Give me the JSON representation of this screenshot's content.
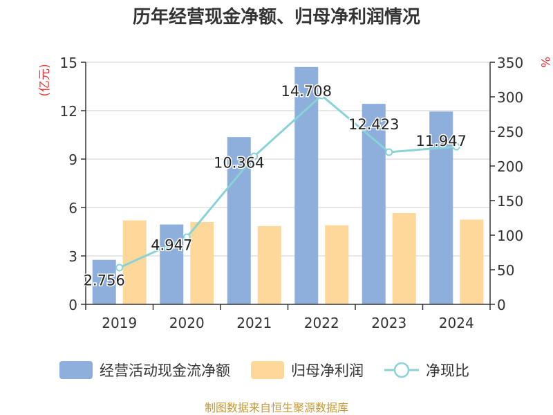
{
  "chart_data": {
    "type": "bar",
    "title": "历年经营现金净额、归母净利润情况",
    "categories": [
      "2019",
      "2020",
      "2021",
      "2022",
      "2023",
      "2024"
    ],
    "series": [
      {
        "name": "经营活动现金流净额",
        "kind": "bar",
        "axis": "left",
        "color": "#8eaedc",
        "values": [
          2.756,
          4.947,
          10.364,
          14.708,
          12.423,
          11.947
        ],
        "labels": [
          "2.756",
          "4.947",
          "10.364",
          "14.708",
          "12.423",
          "11.947"
        ]
      },
      {
        "name": "归母净利润",
        "kind": "bar",
        "axis": "left",
        "color": "#fdd89a",
        "values": [
          5.2,
          5.1,
          4.85,
          4.9,
          5.65,
          5.25
        ]
      },
      {
        "name": "净现比",
        "kind": "line",
        "axis": "right",
        "color": "#88d3d6",
        "values": [
          53,
          97,
          214,
          302,
          220,
          228
        ]
      }
    ],
    "y_left": {
      "label": "(亿元)",
      "min": 0,
      "max": 15,
      "ticks": [
        0,
        3,
        6,
        9,
        12,
        15
      ]
    },
    "y_right": {
      "label": "%",
      "min": 0,
      "max": 350,
      "ticks": [
        0,
        50,
        100,
        150,
        200,
        250,
        300,
        350
      ]
    },
    "grid": true,
    "legend": "bottom"
  },
  "source": "制图数据来自恒生聚源数据库"
}
